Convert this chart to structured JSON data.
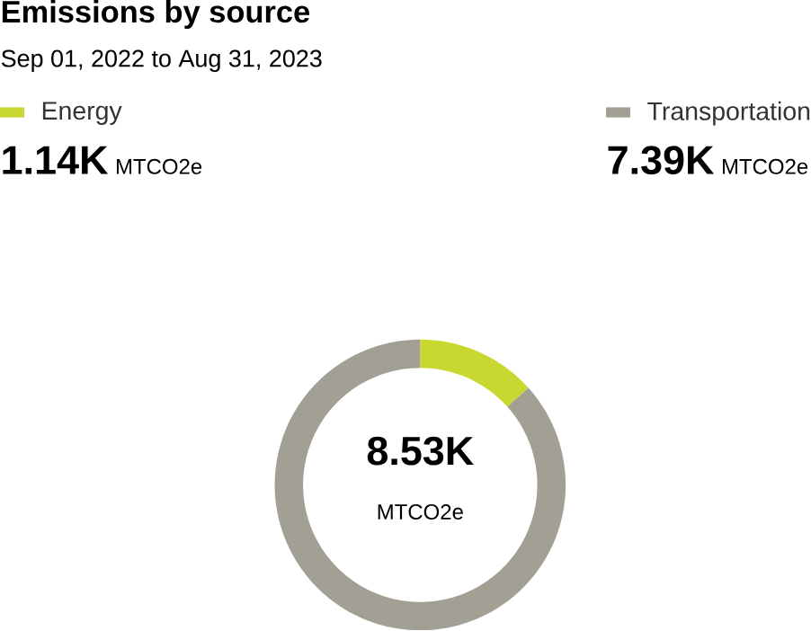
{
  "chart_data": {
    "type": "donut",
    "title": "Emissions by source",
    "subtitle": "Sep 01, 2022 to Aug 31, 2023",
    "categories": [
      "Energy",
      "Transportation"
    ],
    "values": [
      1140,
      7390
    ],
    "value_labels": [
      "1.14K",
      "7.39K"
    ],
    "colors": [
      "#c9d831",
      "#a29f94"
    ],
    "legend": "top",
    "annotations": [
      "8.53K",
      "MTCO2e"
    ]
  }
}
